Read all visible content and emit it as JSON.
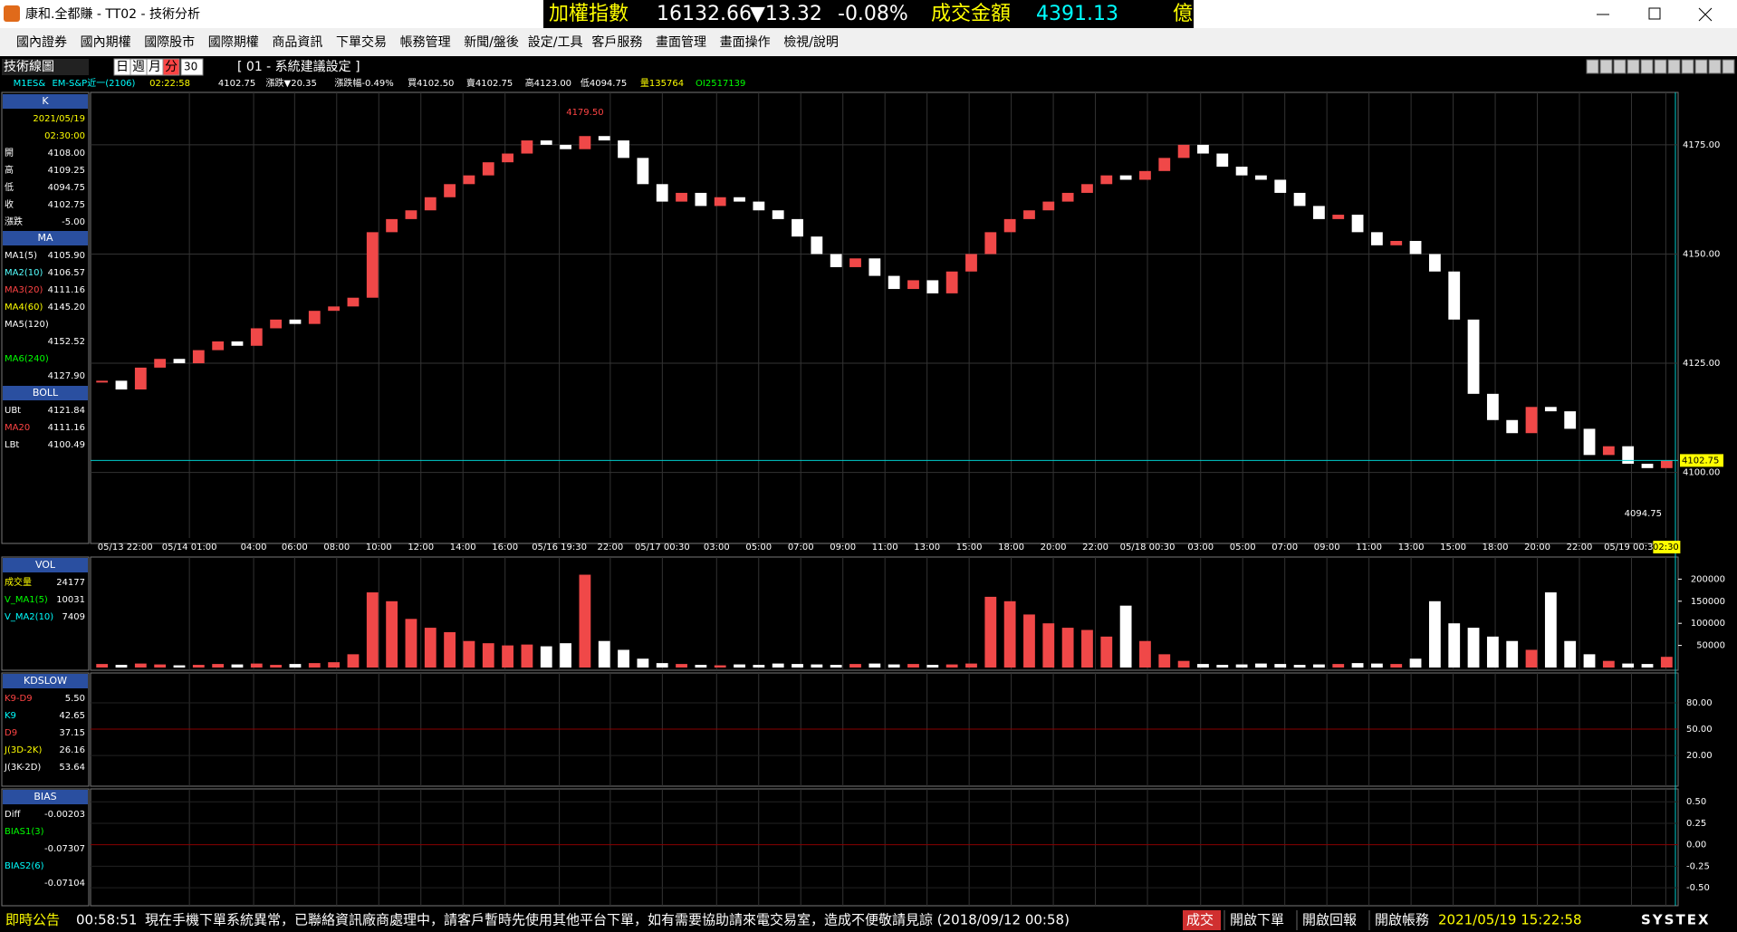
{
  "window": {
    "title": "康和.全都賺 - TT02 - 技術分析"
  },
  "ticker": {
    "name": "加權指數",
    "price": "16132.66",
    "change": "▼13.32",
    "pct": "-0.08%",
    "turnover_label": "成交金額",
    "turnover": "4391.13",
    "unit": "億"
  },
  "menu": [
    "國內證券",
    "國內期權",
    "國際股市",
    "國際期權",
    "商品資訊",
    "下單交易",
    "帳務管理",
    "新聞/盤後",
    "設定/工具",
    "客戶服務",
    "畫面管理",
    "畫面操作",
    "檢視/說明"
  ],
  "toolbar": {
    "title": "技術線圖",
    "periods": [
      "日",
      "週",
      "月",
      "分"
    ],
    "interval": "30",
    "setting": "[ 01 - 系統建議設定 ]"
  },
  "quote": [
    "M1ES&",
    "EM-S&P近一(2106)",
    "02:22:58",
    "4102.75",
    "漲跌▼20.35",
    "漲跌幅-0.49%",
    "買4102.50",
    "賣4102.75",
    "高4123.00",
    "低4094.75",
    "量135764",
    "OI2517139"
  ],
  "sidebar": [
    {
      "title": "K",
      "rows": [
        {
          "value": "2021/05/19"
        },
        {
          "value": "02:30:00"
        },
        {
          "label": "開",
          "value": "4108.00"
        },
        {
          "label": "高",
          "value": "4109.25"
        },
        {
          "label": "低",
          "value": "4094.75"
        },
        {
          "label": "收",
          "value": "4102.75"
        },
        {
          "label": "漲跌",
          "value": "-5.00"
        }
      ]
    },
    {
      "title": "MA",
      "rows": [
        {
          "label": "MA1(5)",
          "value": "4105.90"
        },
        {
          "label": "MA2(10)",
          "value": "4106.57"
        },
        {
          "label": "MA3(20)",
          "value": "4111.16"
        },
        {
          "label": "MA4(60)",
          "value": "4145.20"
        },
        {
          "label": "MA5(120)"
        },
        {
          "value": "4152.52"
        },
        {
          "label": "MA6(240)"
        },
        {
          "value": "4127.90"
        }
      ]
    },
    {
      "title": "BOLL",
      "rows": [
        {
          "label": "UBt",
          "value": "4121.84"
        },
        {
          "label": "MA20",
          "value": "4111.16"
        },
        {
          "label": "LBt",
          "value": "4100.49"
        }
      ]
    },
    {
      "title": "VOL",
      "rows": [
        {
          "label": "成交量",
          "value": "24177"
        },
        {
          "label": "V_MA1(5)",
          "value": "10031"
        },
        {
          "label": "V_MA2(10)",
          "value": "7409"
        }
      ]
    },
    {
      "title": "KDSLOW",
      "rows": [
        {
          "label": "K9-D9",
          "value": "5.50"
        },
        {
          "label": "K9",
          "value": "42.65"
        },
        {
          "label": "D9",
          "value": "37.15"
        },
        {
          "label": "J(3D-2K)",
          "value": "26.16"
        },
        {
          "label": "J(3K-2D)",
          "value": "53.64"
        }
      ]
    },
    {
      "title": "BIAS",
      "rows": [
        {
          "label": "Diff",
          "value": "-0.00203"
        },
        {
          "label": "BIAS1(3)"
        },
        {
          "value": "-0.07307"
        },
        {
          "label": "BIAS2(6)"
        },
        {
          "value": "-0.07104"
        }
      ]
    }
  ],
  "chart": {
    "type": "candlestick",
    "x_labels": [
      "05/13 22:00",
      "05/14 01:00",
      "04:00",
      "06:00",
      "08:00",
      "10:00",
      "12:00",
      "14:00",
      "16:00",
      "05/16 19:30",
      "22:00",
      "05/17 00:30",
      "03:00",
      "05:00",
      "07:00",
      "09:00",
      "11:00",
      "13:00",
      "15:00",
      "18:00",
      "20:00",
      "22:00",
      "05/18 00:30",
      "03:00",
      "05:00",
      "07:00",
      "09:00",
      "11:00",
      "13:00",
      "15:00",
      "18:00",
      "20:00",
      "22:00",
      "05/19 00:30",
      "02:30"
    ],
    "ylim": [
      4085,
      4187
    ],
    "yticks": [
      {
        "value": 4175,
        "label": "4175.00"
      },
      {
        "value": 4150,
        "label": "4150.00"
      },
      {
        "value": 4125,
        "label": "4125.00"
      },
      {
        "value": 4100,
        "label": "4100.00"
      }
    ],
    "high_label": "4179.50",
    "low_label": "4094.75",
    "last_label": "4102.75",
    "closes": [
      4121,
      4119,
      4124,
      4126,
      4125,
      4128,
      4130,
      4129,
      4133,
      4135,
      4134,
      4137,
      4138,
      4140,
      4155,
      4158,
      4160,
      4163,
      4166,
      4168,
      4171,
      4173,
      4176,
      4175,
      4174,
      4177,
      4176,
      4172,
      4166,
      4162,
      4164,
      4161,
      4163,
      4162,
      4160,
      4158,
      4154,
      4150,
      4147,
      4149,
      4145,
      4142,
      4144,
      4141,
      4146,
      4150,
      4155,
      4158,
      4160,
      4162,
      4164,
      4166,
      4168,
      4167,
      4169,
      4172,
      4175,
      4173,
      4170,
      4168,
      4167,
      4164,
      4161,
      4158,
      4159,
      4155,
      4152,
      4153,
      4150,
      4146,
      4135,
      4118,
      4112,
      4109,
      4115,
      4114,
      4110,
      4104,
      4106,
      4102,
      4101,
      4102.75
    ],
    "volume": {
      "ylim": [
        0,
        250000
      ],
      "yticks": [
        200000,
        150000,
        100000,
        50000
      ],
      "values": [
        8000,
        6000,
        9000,
        7000,
        5000,
        6000,
        8000,
        7000,
        9000,
        6000,
        8000,
        10000,
        12000,
        30000,
        170000,
        150000,
        110000,
        90000,
        80000,
        60000,
        55000,
        50000,
        52000,
        48000,
        55000,
        210000,
        60000,
        40000,
        20000,
        10000,
        8000,
        6000,
        5000,
        7000,
        6000,
        9000,
        8000,
        7000,
        6000,
        8000,
        9000,
        7000,
        8000,
        6000,
        7000,
        9000,
        160000,
        150000,
        120000,
        100000,
        90000,
        85000,
        70000,
        140000,
        60000,
        30000,
        15000,
        8000,
        6000,
        7000,
        9000,
        8000,
        6000,
        7000,
        8000,
        10000,
        9000,
        8000,
        20000,
        150000,
        100000,
        90000,
        70000,
        60000,
        40000,
        170000,
        60000,
        30000,
        15000,
        9000,
        8000,
        24177
      ]
    },
    "kd": {
      "ylim": [
        -15,
        114
      ],
      "yticks": [
        {
          "value": 80,
          "label": "80.00"
        },
        {
          "value": 50,
          "label": "50.00"
        },
        {
          "value": 20,
          "label": "20.00"
        }
      ]
    },
    "bias": {
      "ylim": [
        -0.71,
        0.65
      ],
      "yticks": [
        {
          "value": 0.5,
          "label": "0.50"
        },
        {
          "value": 0.25,
          "label": "0.25"
        },
        {
          "value": 0,
          "label": "0.00"
        },
        {
          "value": -0.25,
          "label": "-0.25"
        },
        {
          "value": -0.5,
          "label": "-0.50"
        }
      ]
    }
  },
  "status": {
    "label": "即時公告",
    "time": "00:58:51",
    "message": "現在手機下單系統異常，已聯絡資訊廠商處理中，請客戶暫時先使用其他平台下單，如有需要協助請來電交易室，造成不便敬請見諒 (2018/09/12 00:58)",
    "trade": "成交",
    "buttons": [
      "開啟下單",
      "開啟回報",
      "開啟帳務"
    ],
    "clock": "2021/05/19 15:22:58",
    "brand": "SYSTEX"
  }
}
